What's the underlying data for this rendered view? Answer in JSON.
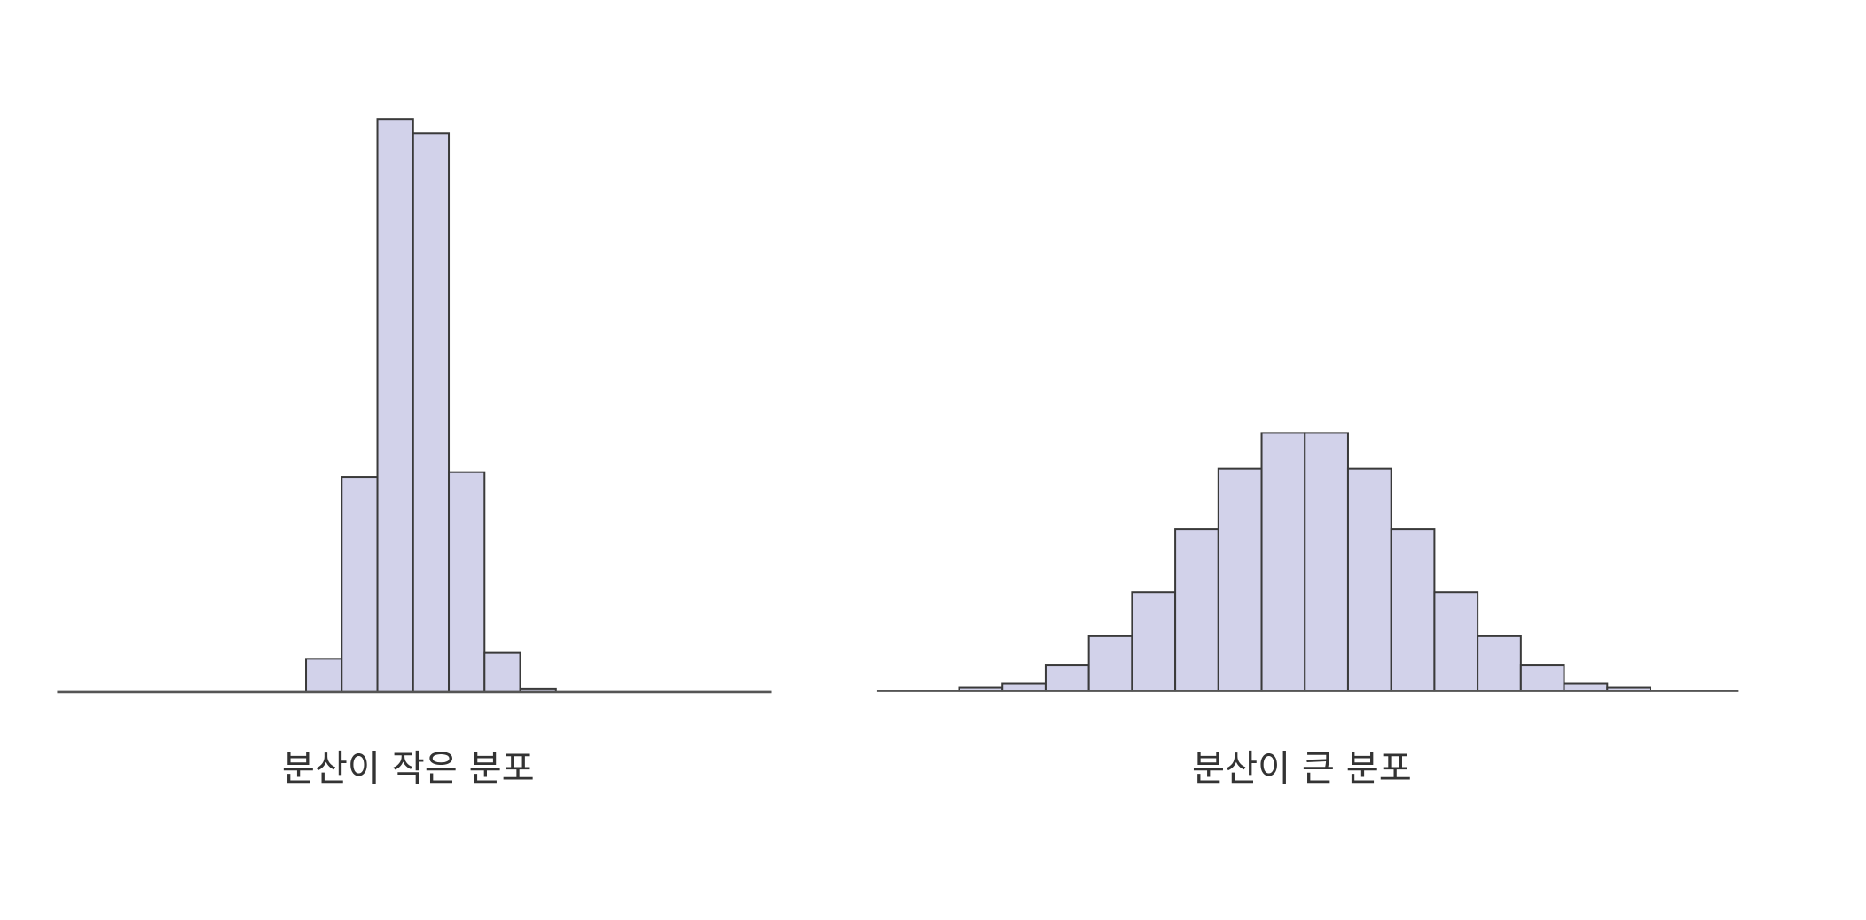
{
  "chart_data": [
    {
      "type": "histogram",
      "title": "분산이 작은 분포",
      "bins": [
        0,
        1,
        2,
        3,
        4,
        5,
        6,
        7
      ],
      "values": [
        28,
        181,
        482,
        470,
        185,
        33,
        3
      ],
      "xlim": [
        -6.97,
        13.03
      ],
      "ylim": [
        0,
        500
      ],
      "color": "#d2d2ea"
    },
    {
      "type": "histogram",
      "title": "분산이 큰 분포",
      "bins": [
        0,
        1,
        2,
        3,
        4,
        5,
        6,
        7,
        8,
        9,
        10,
        11,
        12,
        13,
        14,
        15,
        16
      ],
      "values": [
        3,
        6,
        22,
        46,
        83,
        136,
        187,
        217,
        217,
        187,
        136,
        83,
        46,
        22,
        6,
        3
      ],
      "xlim": [
        -1.9,
        18.04
      ],
      "ylim": [
        0,
        500
      ],
      "color": "#d2d2ea"
    }
  ]
}
